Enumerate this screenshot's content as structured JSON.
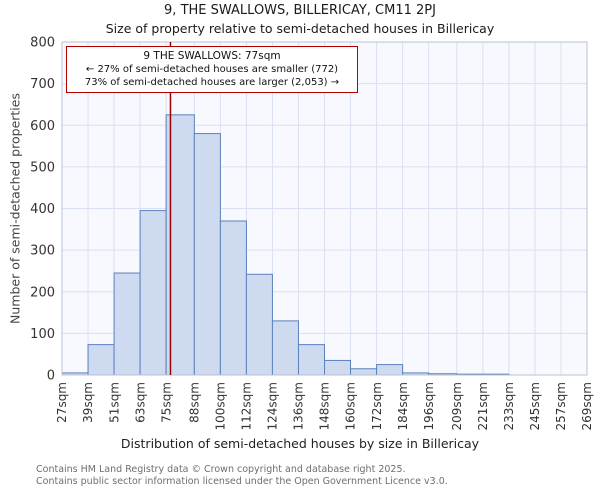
{
  "header": {
    "title": "9, THE SWALLOWS, BILLERICAY, CM11 2PJ",
    "subtitle": "Size of property relative to semi-detached houses in Billericay"
  },
  "annotation": {
    "line1": "9 THE SWALLOWS: 77sqm",
    "line2": "← 27% of semi-detached houses are smaller (772)",
    "line3": "73% of semi-detached houses are larger (2,053) →"
  },
  "footer": {
    "line1": "Contains HM Land Registry data © Crown copyright and database right 2025.",
    "line2": "Contains public sector information licensed under the Open Government Licence v3.0."
  },
  "chart_data": {
    "type": "bar",
    "title": "9, THE SWALLOWS, BILLERICAY, CM11 2PJ",
    "subtitle": "Size of property relative to semi-detached houses in Billericay",
    "xlabel": "Distribution of semi-detached houses by size in Billericay",
    "ylabel": "Number of semi-detached properties",
    "bin_edges": [
      27,
      39,
      51,
      63,
      75,
      88,
      100,
      112,
      124,
      136,
      148,
      160,
      172,
      184,
      196,
      209,
      221,
      233,
      245,
      257,
      269
    ],
    "tick_labels": [
      "27sqm",
      "39sqm",
      "51sqm",
      "63sqm",
      "75sqm",
      "88sqm",
      "100sqm",
      "112sqm",
      "124sqm",
      "136sqm",
      "148sqm",
      "160sqm",
      "172sqm",
      "184sqm",
      "196sqm",
      "209sqm",
      "221sqm",
      "233sqm",
      "245sqm",
      "257sqm",
      "269sqm"
    ],
    "values": [
      5,
      73,
      245,
      395,
      625,
      580,
      370,
      242,
      130,
      73,
      35,
      15,
      25,
      5,
      3,
      2,
      2,
      0,
      0,
      0
    ],
    "ylim": [
      0,
      800
    ],
    "yticks": [
      0,
      100,
      200,
      300,
      400,
      500,
      600,
      700,
      800
    ],
    "marker": {
      "x_value": 77,
      "label": "9 THE SWALLOWS: 77sqm"
    },
    "grid": true,
    "legend": null,
    "colors": {
      "bar_fill": "#cedaf0",
      "bar_stroke": "#5b81bd",
      "marker_line": "#990000",
      "grid": "#d9e0f1",
      "plot_bg": "#f7f9fe",
      "plot_border": "#b9c2d0",
      "tick_text": "#333333",
      "axis_label_text": "#444444"
    }
  }
}
